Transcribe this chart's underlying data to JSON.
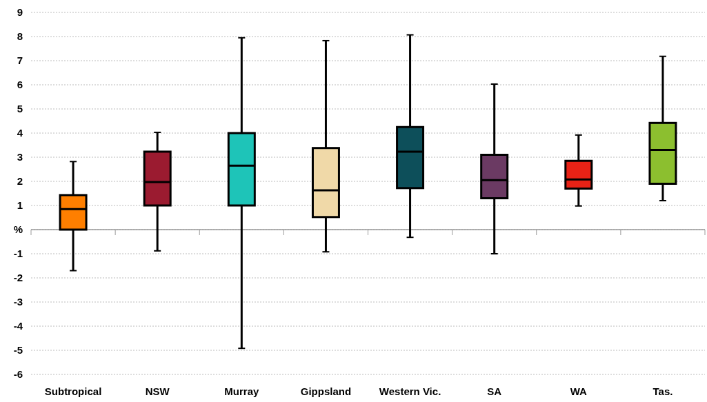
{
  "chart_data": {
    "type": "box",
    "categories": [
      "Subtropical",
      "NSW",
      "Murray",
      "Gippsland",
      "Western Vic.",
      "SA",
      "WA",
      "Tas."
    ],
    "boxes": [
      {
        "low": -1.7,
        "q1": 0,
        "median": 0.85,
        "q3": 1.43,
        "high": 2.82
      },
      {
        "low": -0.88,
        "q1": 1.0,
        "median": 1.97,
        "q3": 3.23,
        "high": 4.03
      },
      {
        "low": -4.92,
        "q1": 1.0,
        "median": 2.65,
        "q3": 4.0,
        "high": 7.95
      },
      {
        "low": -0.92,
        "q1": 0.52,
        "median": 1.63,
        "q3": 3.38,
        "high": 7.83
      },
      {
        "low": -0.32,
        "q1": 1.72,
        "median": 3.23,
        "q3": 4.25,
        "high": 8.07
      },
      {
        "low": -1.0,
        "q1": 1.3,
        "median": 2.05,
        "q3": 3.1,
        "high": 6.03
      },
      {
        "low": 0.98,
        "q1": 1.7,
        "median": 2.08,
        "q3": 2.85,
        "high": 3.92
      },
      {
        "low": 1.2,
        "q1": 1.9,
        "median": 3.3,
        "q3": 4.42,
        "high": 7.18
      }
    ],
    "colors": [
      "#ff7f00",
      "#9b1b30",
      "#1ec4b8",
      "#f0d9a8",
      "#0d4f5a",
      "#6b3a63",
      "#e82216",
      "#8cbf2f"
    ],
    "ylim": [
      -6,
      9
    ],
    "yticks": [
      -6,
      -5,
      -4,
      -3,
      -2,
      -1,
      {
        "value": 0,
        "label": "%"
      },
      1,
      2,
      3,
      4,
      5,
      6,
      7,
      8,
      9
    ],
    "grid": "y"
  }
}
